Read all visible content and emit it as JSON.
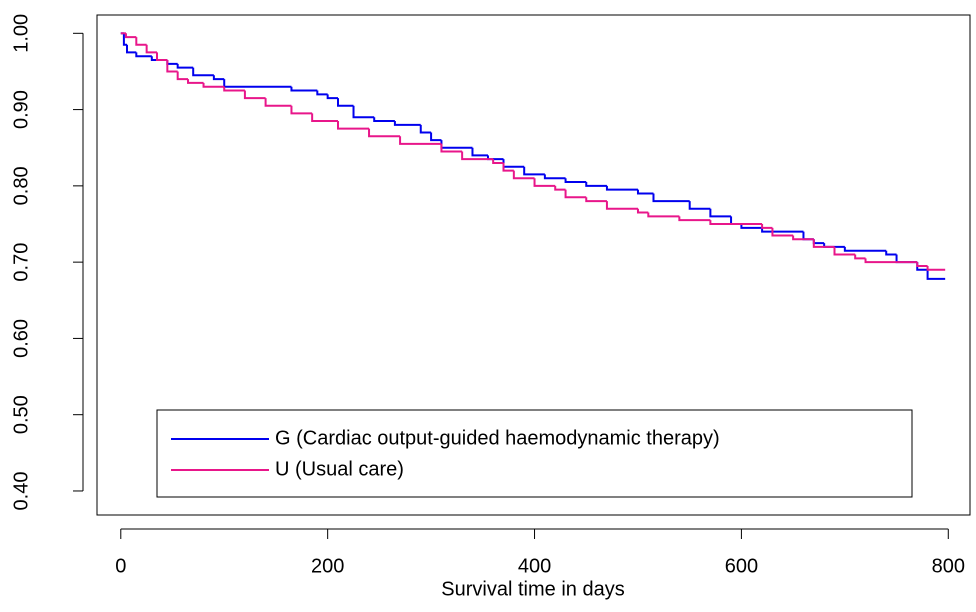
{
  "chart_data": {
    "type": "step",
    "x_label": "Survival time in days",
    "xlim": [
      -23,
      821
    ],
    "ylim": [
      0.3685,
      1.024
    ],
    "xticks": [
      0,
      200,
      400,
      600,
      800
    ],
    "yticks": [
      {
        "value": 0.4,
        "label": "0.40"
      },
      {
        "value": 0.5,
        "label": "0.50"
      },
      {
        "value": 0.6,
        "label": "0.60"
      },
      {
        "value": 0.7,
        "label": "0.70"
      },
      {
        "value": 0.8,
        "label": "0.80"
      },
      {
        "value": 0.9,
        "label": "0.90"
      },
      {
        "value": 1,
        "label": "1.00"
      }
    ],
    "legend": "bottom",
    "series": [
      {
        "name": "G (Cardiac output-guided haemodynamic therapy)",
        "color": "#0000ee",
        "x": [
          0,
          3,
          6,
          15,
          30,
          45,
          55,
          70,
          90,
          100,
          165,
          190,
          200,
          210,
          225,
          245,
          265,
          290,
          300,
          310,
          340,
          355,
          370,
          390,
          410,
          430,
          450,
          470,
          500,
          515,
          550,
          570,
          590,
          600,
          620,
          660,
          670,
          680,
          700,
          740,
          750,
          770,
          780,
          797
        ],
        "values": [
          1.0,
          0.985,
          0.975,
          0.97,
          0.965,
          0.96,
          0.955,
          0.945,
          0.94,
          0.93,
          0.925,
          0.92,
          0.915,
          0.905,
          0.89,
          0.885,
          0.88,
          0.87,
          0.86,
          0.85,
          0.84,
          0.835,
          0.825,
          0.815,
          0.81,
          0.805,
          0.8,
          0.795,
          0.79,
          0.78,
          0.77,
          0.76,
          0.75,
          0.745,
          0.74,
          0.73,
          0.725,
          0.72,
          0.715,
          0.71,
          0.7,
          0.69,
          0.678,
          0.678
        ]
      },
      {
        "name": "U (Usual care)",
        "color": "#e8168a",
        "x": [
          0,
          5,
          15,
          25,
          35,
          45,
          55,
          65,
          80,
          100,
          120,
          140,
          165,
          185,
          210,
          240,
          270,
          310,
          330,
          360,
          370,
          380,
          400,
          420,
          430,
          450,
          470,
          500,
          510,
          540,
          570,
          620,
          630,
          650,
          670,
          690,
          710,
          720,
          770,
          780,
          797
        ],
        "values": [
          1.0,
          0.995,
          0.985,
          0.975,
          0.965,
          0.95,
          0.94,
          0.935,
          0.93,
          0.925,
          0.915,
          0.905,
          0.895,
          0.885,
          0.875,
          0.865,
          0.855,
          0.845,
          0.835,
          0.83,
          0.82,
          0.81,
          0.8,
          0.795,
          0.785,
          0.78,
          0.77,
          0.765,
          0.76,
          0.755,
          0.75,
          0.745,
          0.735,
          0.73,
          0.72,
          0.71,
          0.705,
          0.7,
          0.695,
          0.69,
          0.69
        ]
      }
    ]
  }
}
